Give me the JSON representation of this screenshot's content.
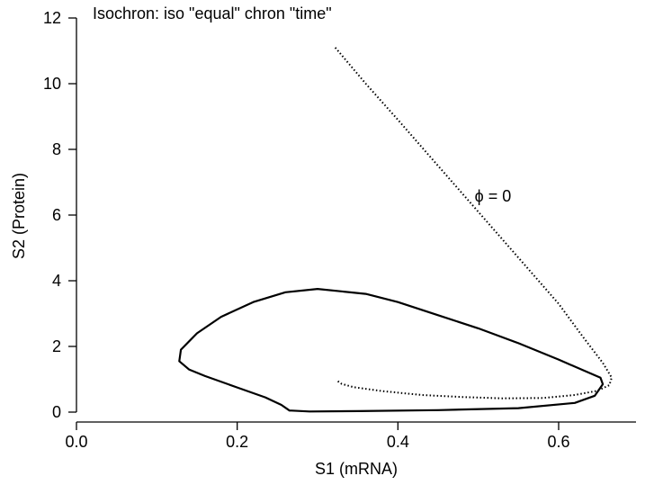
{
  "chart_data": {
    "type": "line",
    "title": "Isochron: iso \"equal\" chron \"time\"",
    "xlabel": "S1 (mRNA)",
    "ylabel": "S2 (Protein)",
    "xlim": [
      0,
      0.75
    ],
    "ylim": [
      0,
      12
    ],
    "x_ticks": [
      "0.0",
      "0.2",
      "0.4",
      "0.6"
    ],
    "y_ticks": [
      "0",
      "2",
      "4",
      "6",
      "8",
      "10",
      "12"
    ],
    "grid": false,
    "annotations": [
      {
        "symbol": "ϕ",
        "text": "= 0",
        "x": 0.5,
        "y": 6.6
      }
    ],
    "series": [
      {
        "style": "solid",
        "x": [
          0.265,
          0.29,
          0.35,
          0.45,
          0.55,
          0.62,
          0.645,
          0.655,
          0.652,
          0.63,
          0.6,
          0.55,
          0.5,
          0.45,
          0.4,
          0.36,
          0.3,
          0.26,
          0.22,
          0.18,
          0.15,
          0.13,
          0.128,
          0.14,
          0.16,
          0.2,
          0.235,
          0.255,
          0.265
        ],
        "y": [
          0.05,
          0.02,
          0.03,
          0.06,
          0.12,
          0.28,
          0.5,
          0.85,
          1.05,
          1.28,
          1.6,
          2.1,
          2.55,
          2.95,
          3.35,
          3.6,
          3.75,
          3.65,
          3.35,
          2.9,
          2.4,
          1.9,
          1.55,
          1.3,
          1.1,
          0.75,
          0.45,
          0.22,
          0.05
        ]
      },
      {
        "style": "dotted",
        "x": [
          0.322,
          0.36,
          0.4,
          0.45,
          0.5,
          0.55,
          0.6,
          0.63,
          0.655,
          0.666,
          0.663,
          0.648,
          0.62,
          0.58,
          0.53,
          0.48,
          0.43,
          0.38,
          0.345,
          0.33,
          0.323
        ],
        "y": [
          11.1,
          10.0,
          8.9,
          7.5,
          6.1,
          4.7,
          3.3,
          2.3,
          1.5,
          1.05,
          0.82,
          0.65,
          0.52,
          0.43,
          0.42,
          0.46,
          0.52,
          0.64,
          0.76,
          0.86,
          0.98
        ]
      }
    ]
  }
}
